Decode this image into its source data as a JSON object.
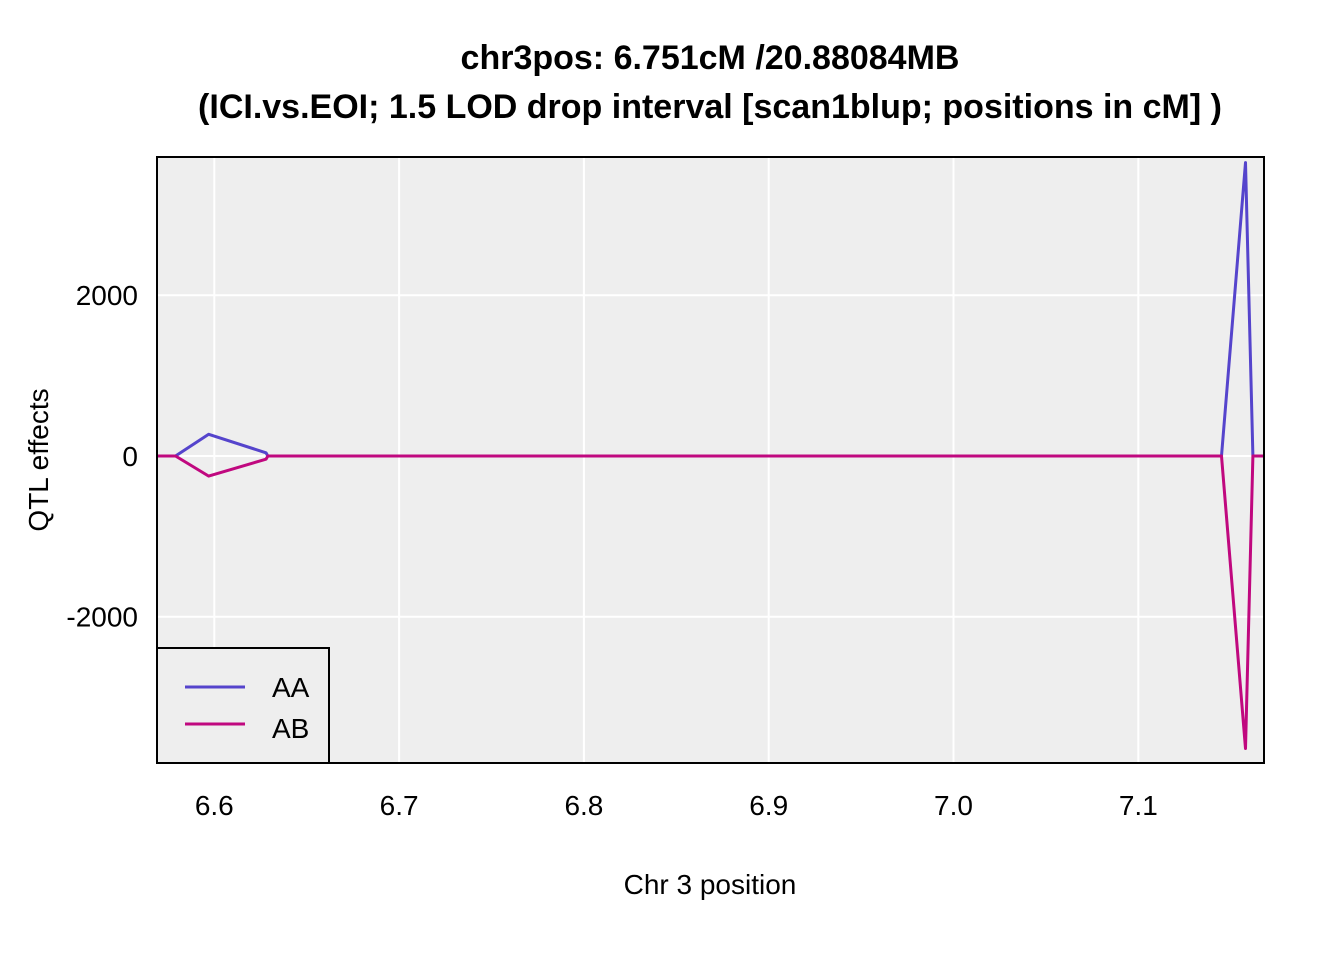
{
  "chart_data": {
    "type": "line",
    "title_line1": "chr3pos: 6.751cM /20.88084MB",
    "title_line2": "(ICI.vs.EOI; 1.5 LOD drop interval [scan1blup; positions in cM] )",
    "xlabel": "Chr 3 position",
    "ylabel": "QTL effects",
    "xlim": [
      6.569,
      7.168
    ],
    "ylim": [
      -3820,
      3720
    ],
    "x_ticks": [
      6.6,
      6.7,
      6.8,
      6.9,
      7.0,
      7.1
    ],
    "x_tick_labels": [
      "6.6",
      "6.7",
      "6.8",
      "6.9",
      "7.0",
      "7.1"
    ],
    "y_ticks": [
      -2000,
      0,
      2000
    ],
    "y_tick_labels": [
      "-2000",
      "0",
      "2000"
    ],
    "grid": true,
    "background": "#eeeeee",
    "legend_position": "bottom-left",
    "series": [
      {
        "name": "AA",
        "color": "#5544cc",
        "x": [
          6.569,
          6.579,
          6.597,
          6.628,
          6.629,
          7.145,
          7.158,
          7.162,
          7.168
        ],
        "y": [
          0,
          0,
          270,
          40,
          0,
          0,
          3650,
          0,
          0
        ]
      },
      {
        "name": "AB",
        "color": "#c0087f",
        "x": [
          6.569,
          6.579,
          6.597,
          6.628,
          6.629,
          7.145,
          7.158,
          7.162,
          7.168
        ],
        "y": [
          0,
          0,
          -250,
          -40,
          0,
          0,
          -3640,
          0,
          0
        ]
      }
    ]
  }
}
